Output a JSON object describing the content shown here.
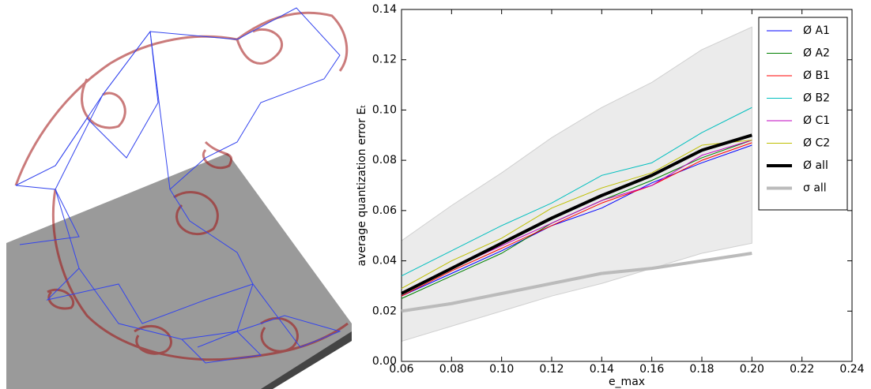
{
  "chart_data": {
    "type": "line",
    "xlabel": "e_max",
    "ylabel": "average quantization error Eₜ",
    "x": [
      0.06,
      0.08,
      0.1,
      0.12,
      0.14,
      0.16,
      0.18,
      0.2
    ],
    "xlim": [
      0.06,
      0.24
    ],
    "ylim": [
      0,
      0.14
    ],
    "xticks": [
      0.06,
      0.08,
      {
        "value": 0.1,
        "label": "0.10"
      },
      0.12,
      0.14,
      0.16,
      0.18,
      {
        "value": 0.2,
        "label": "0.20"
      },
      0.22,
      0.24
    ],
    "yticks": [
      {
        "value": 0,
        "label": "0.00"
      },
      0.02,
      0.04,
      0.06,
      0.08,
      {
        "value": 0.1,
        "label": "0.10"
      },
      0.12,
      0.14
    ],
    "grid": false,
    "legend": "upper right",
    "band": {
      "color": "#ebebeb",
      "lower": [
        0.008,
        0.014,
        0.02,
        0.026,
        0.031,
        0.037,
        0.043,
        0.047
      ],
      "upper": [
        0.048,
        0.062,
        0.075,
        0.089,
        0.101,
        0.111,
        0.124,
        0.133
      ]
    },
    "series": [
      {
        "name": "Ø A1",
        "color": "#0000ff",
        "width": 1,
        "values": [
          0.026,
          0.035,
          0.044,
          0.054,
          0.061,
          0.071,
          0.079,
          0.086
        ]
      },
      {
        "name": "Ø A2",
        "color": "#008000",
        "width": 1,
        "values": [
          0.025,
          0.034,
          0.043,
          0.055,
          0.064,
          0.072,
          0.081,
          0.088
        ]
      },
      {
        "name": "Ø B1",
        "color": "#ff0000",
        "width": 1,
        "values": [
          0.026,
          0.036,
          0.045,
          0.054,
          0.063,
          0.07,
          0.08,
          0.087
        ]
      },
      {
        "name": "Ø B2",
        "color": "#00bfbf",
        "width": 1,
        "values": [
          0.034,
          0.044,
          0.054,
          0.063,
          0.074,
          0.079,
          0.091,
          0.101
        ]
      },
      {
        "name": "Ø C1",
        "color": "#bf00bf",
        "width": 1,
        "values": [
          0.027,
          0.037,
          0.046,
          0.055,
          0.064,
          0.07,
          0.082,
          0.088
        ]
      },
      {
        "name": "Ø C2",
        "color": "#bfbf00",
        "width": 1,
        "values": [
          0.029,
          0.04,
          0.049,
          0.061,
          0.069,
          0.075,
          0.086,
          0.088
        ]
      },
      {
        "name": "Ø all",
        "color": "#000000",
        "width": 4,
        "values": [
          0.027,
          0.037,
          0.047,
          0.057,
          0.066,
          0.074,
          0.084,
          0.09
        ]
      },
      {
        "name": "σ all",
        "color": "#bbbbbb",
        "width": 4,
        "values": [
          0.02,
          0.023,
          0.027,
          0.031,
          0.035,
          0.037,
          0.04,
          0.043
        ]
      }
    ]
  }
}
